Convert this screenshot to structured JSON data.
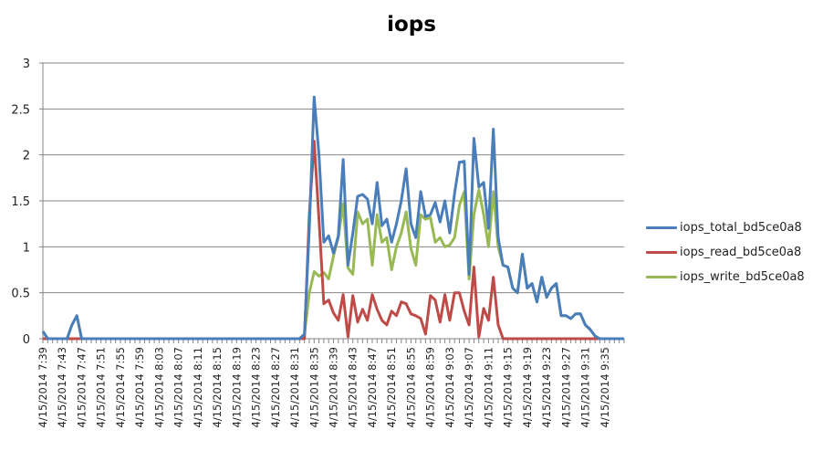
{
  "chart_data": {
    "type": "line",
    "title": "iops",
    "xlabel": "",
    "ylabel": "",
    "ylim": [
      0,
      3
    ],
    "yticks": [
      0,
      0.5,
      1,
      1.5,
      2,
      2.5,
      3
    ],
    "grid": true,
    "legend_position": "right",
    "x_label_every": 4,
    "x_start": "4/15/2014 7:39",
    "x_tick_labels": [
      "4/15/2014 7:39",
      "4/15/2014 7:43",
      "4/15/2014 7:47",
      "4/15/2014 7:51",
      "4/15/2014 7:55",
      "4/15/2014 7:59",
      "4/15/2014 8:03",
      "4/15/2014 8:07",
      "4/15/2014 8:11",
      "4/15/2014 8:15",
      "4/15/2014 8:19",
      "4/15/2014 8:23",
      "4/15/2014 8:27",
      "4/15/2014 8:31",
      "4/15/2014 8:35",
      "4/15/2014 8:39",
      "4/15/2014 8:43",
      "4/15/2014 8:47",
      "4/15/2014 8:51",
      "4/15/2014 8:55",
      "4/15/2014 8:59",
      "4/15/2014 9:03",
      "4/15/2014 9:07",
      "4/15/2014 9:11",
      "4/15/2014 9:15",
      "4/15/2014 9:19",
      "4/15/2014 9:23",
      "4/15/2014 9:27",
      "4/15/2014 9:31",
      "4/15/2014 9:35"
    ],
    "series": [
      {
        "name": "iops_total_bd5ce0a8",
        "color": "#4a7ebb",
        "values": [
          0.08,
          0,
          0,
          0,
          0,
          0,
          0.15,
          0.25,
          0,
          0,
          0,
          0,
          0,
          0,
          0,
          0,
          0,
          0,
          0,
          0,
          0,
          0,
          0,
          0,
          0,
          0,
          0,
          0,
          0,
          0,
          0,
          0,
          0,
          0,
          0,
          0,
          0,
          0,
          0,
          0,
          0,
          0,
          0,
          0,
          0,
          0,
          0,
          0,
          0,
          0,
          0,
          0,
          0,
          0,
          0.05,
          1.2,
          2.63,
          2.0,
          1.05,
          1.12,
          0.93,
          1.12,
          1.95,
          0.8,
          1.15,
          1.55,
          1.57,
          1.52,
          1.25,
          1.7,
          1.23,
          1.3,
          1.05,
          1.25,
          1.5,
          1.85,
          1.25,
          1.1,
          1.6,
          1.33,
          1.35,
          1.48,
          1.27,
          1.5,
          1.15,
          1.58,
          1.92,
          1.93,
          0.7,
          2.18,
          1.65,
          1.7,
          1.2,
          2.28,
          1.1,
          0.8,
          0.78,
          0.55,
          0.5,
          0.92,
          0.55,
          0.6,
          0.4,
          0.67,
          0.45,
          0.55,
          0.6,
          0.25,
          0.25,
          0.22,
          0.27,
          0.27,
          0.15,
          0.1,
          0.03,
          0,
          0,
          0,
          0,
          0,
          0
        ]
      },
      {
        "name": "iops_read_bd5ce0a8",
        "color": "#be4b48",
        "values": [
          0,
          0,
          0,
          0,
          0,
          0,
          0,
          0,
          0,
          0,
          0,
          0,
          0,
          0,
          0,
          0,
          0,
          0,
          0,
          0,
          0,
          0,
          0,
          0,
          0,
          0,
          0,
          0,
          0,
          0,
          0,
          0,
          0,
          0,
          0,
          0,
          0,
          0,
          0,
          0,
          0,
          0,
          0,
          0,
          0,
          0,
          0,
          0,
          0,
          0,
          0,
          0,
          0,
          0,
          0,
          1.35,
          2.15,
          1.3,
          0.38,
          0.42,
          0.28,
          0.2,
          0.48,
          0.02,
          0.47,
          0.18,
          0.32,
          0.2,
          0.48,
          0.32,
          0.2,
          0.15,
          0.3,
          0.25,
          0.4,
          0.38,
          0.27,
          0.25,
          0.22,
          0.05,
          0.47,
          0.42,
          0.18,
          0.48,
          0.2,
          0.5,
          0.5,
          0.3,
          0.15,
          0.78,
          0.02,
          0.33,
          0.2,
          0.67,
          0.15,
          0,
          0,
          0,
          0,
          0,
          0,
          0,
          0,
          0,
          0,
          0,
          0,
          0,
          0,
          0,
          0,
          0,
          0,
          0,
          0,
          0,
          0,
          0,
          0,
          0,
          0
        ]
      },
      {
        "name": "iops_write_bd5ce0a8",
        "color": "#98b954",
        "values": [
          0.08,
          0,
          0,
          0,
          0,
          0,
          0.15,
          0.25,
          0,
          0,
          0,
          0,
          0,
          0,
          0,
          0,
          0,
          0,
          0,
          0,
          0,
          0,
          0,
          0,
          0,
          0,
          0,
          0,
          0,
          0,
          0,
          0,
          0,
          0,
          0,
          0,
          0,
          0,
          0,
          0,
          0,
          0,
          0,
          0,
          0,
          0,
          0,
          0,
          0,
          0,
          0,
          0,
          0,
          0,
          0.05,
          0.5,
          0.73,
          0.68,
          0.72,
          0.65,
          0.9,
          1.1,
          1.47,
          0.77,
          0.7,
          1.38,
          1.25,
          1.3,
          0.8,
          1.35,
          1.05,
          1.1,
          0.75,
          1.0,
          1.15,
          1.38,
          0.98,
          0.8,
          1.35,
          1.3,
          1.32,
          1.05,
          1.1,
          1.0,
          1.02,
          1.1,
          1.45,
          1.6,
          0.65,
          1.35,
          1.62,
          1.35,
          1.0,
          1.6,
          1.0,
          0.8,
          0.78,
          0.55,
          0.5,
          0.92,
          0.55,
          0.6,
          0.4,
          0.67,
          0.45,
          0.55,
          0.6,
          0.25,
          0.25,
          0.22,
          0.27,
          0.27,
          0.15,
          0.1,
          0.03,
          0,
          0,
          0,
          0,
          0,
          0
        ]
      }
    ]
  },
  "legend": {
    "items": [
      {
        "label": "iops_total_bd5ce0a8",
        "color": "#4a7ebb"
      },
      {
        "label": "iops_read_bd5ce0a8",
        "color": "#be4b48"
      },
      {
        "label": "iops_write_bd5ce0a8",
        "color": "#98b954"
      }
    ]
  }
}
